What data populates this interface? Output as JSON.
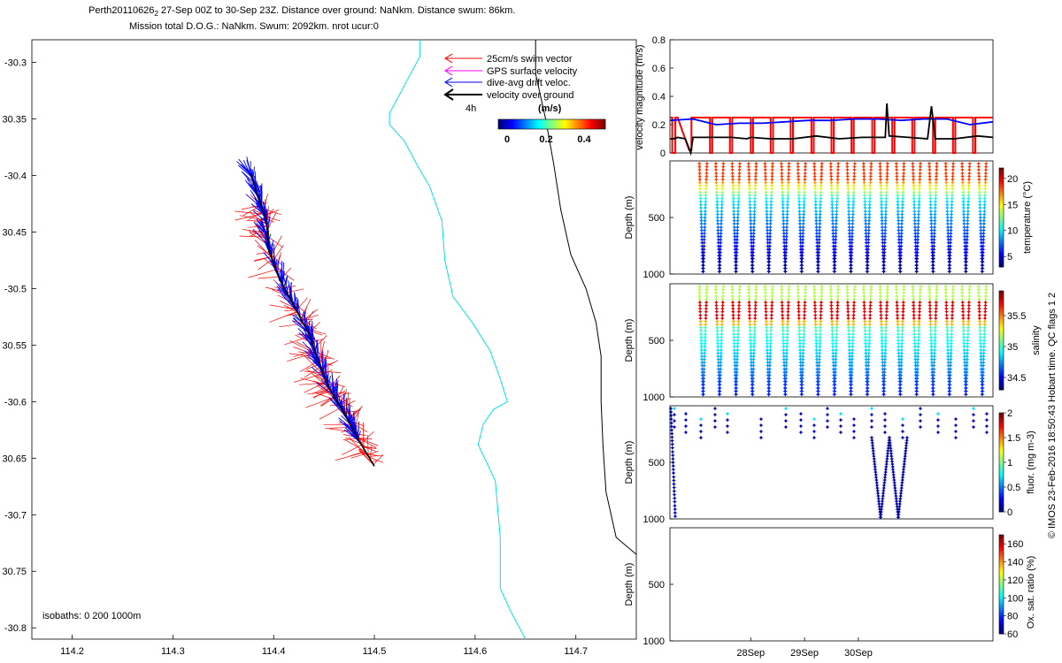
{
  "header": {
    "line1": "Perth20110626",
    "line1_sub": "2",
    "line1_rest": " 27-Sep 00Z to 30-Sep 23Z. Distance over ground: NaNkm. Distance swum: 86km.",
    "line2": "Mission total D.O.G.: NaNkm. Swum: 2092km. nrot ucur:0"
  },
  "map_legend": {
    "items": [
      {
        "label": "25cm/s swim vector",
        "color": "#ff0000"
      },
      {
        "label": "GPS surface velocity",
        "color": "#ff00ff"
      },
      {
        "label": "dive-avg drift veloc.",
        "color": "#0000ff"
      },
      {
        "label": "velocity over ground",
        "color": "#000000"
      }
    ],
    "scale_label": "4h",
    "colorbar_title": "(m/s)",
    "colorbar_ticks": [
      "0",
      "0.2",
      "0.4"
    ]
  },
  "isobaths_label": "isobaths: 0   200  1000m",
  "copyright": "© IMOS 23-Feb-2016 18:50:43 Hobart time. QC flags 1  2",
  "colors": {
    "swim": "#ff0000",
    "drift": "#0000ff",
    "ground": "#000000",
    "isobath_200": "#00e5ee",
    "isobath_1000": "#000000"
  },
  "chart_data": [
    {
      "type": "line",
      "name": "map",
      "xlim": [
        114.16,
        114.76
      ],
      "ylim": [
        -30.81,
        -30.28
      ],
      "xticks": [
        "114.2",
        "114.3",
        "114.4",
        "114.5",
        "114.6",
        "114.7"
      ],
      "yticks": [
        "-30.3",
        "-30.35",
        "-30.4",
        "-30.45",
        "-30.5",
        "-30.55",
        "-30.6",
        "-30.65",
        "-30.7",
        "-30.75",
        "-30.8"
      ],
      "ytick_labels": [
        "-30.3",
        "30.35",
        "-30.4",
        "30.45",
        "-30.5",
        "30.55",
        "-30.6",
        "30.65",
        "-30.7",
        "30.75",
        "-30.8"
      ],
      "isobath_200": [
        [
          114.545,
          -30.28
        ],
        [
          114.545,
          -30.295
        ],
        [
          114.53,
          -30.32
        ],
        [
          114.515,
          -30.345
        ],
        [
          114.515,
          -30.355
        ],
        [
          114.53,
          -30.37
        ],
        [
          114.542,
          -30.39
        ],
        [
          114.555,
          -30.41
        ],
        [
          114.567,
          -30.44
        ],
        [
          114.57,
          -30.475
        ],
        [
          114.578,
          -30.507
        ],
        [
          114.597,
          -30.53
        ],
        [
          114.615,
          -30.555
        ],
        [
          114.625,
          -30.58
        ],
        [
          114.632,
          -30.6
        ],
        [
          114.618,
          -30.607
        ],
        [
          114.608,
          -30.62
        ],
        [
          114.603,
          -30.638
        ],
        [
          114.62,
          -30.67
        ],
        [
          114.625,
          -30.72
        ],
        [
          114.625,
          -30.765
        ],
        [
          114.635,
          -30.785
        ],
        [
          114.65,
          -30.81
        ]
      ],
      "isobath_1000": [
        [
          114.66,
          -30.28
        ],
        [
          114.66,
          -30.31
        ],
        [
          114.67,
          -30.35
        ],
        [
          114.678,
          -30.39
        ],
        [
          114.685,
          -30.43
        ],
        [
          114.695,
          -30.47
        ],
        [
          114.71,
          -30.5
        ],
        [
          114.72,
          -30.53
        ],
        [
          114.725,
          -30.56
        ],
        [
          114.725,
          -30.6
        ],
        [
          114.727,
          -30.64
        ],
        [
          114.73,
          -30.68
        ],
        [
          114.74,
          -30.72
        ],
        [
          114.76,
          -30.735
        ]
      ],
      "track": [
        [
          114.377,
          -30.398
        ],
        [
          114.385,
          -30.42
        ],
        [
          114.393,
          -30.44
        ],
        [
          114.395,
          -30.465
        ],
        [
          114.405,
          -30.49
        ],
        [
          114.42,
          -30.515
        ],
        [
          114.435,
          -30.54
        ],
        [
          114.445,
          -30.565
        ],
        [
          114.455,
          -30.588
        ],
        [
          114.47,
          -30.61
        ],
        [
          114.485,
          -30.635
        ],
        [
          114.5,
          -30.657
        ]
      ],
      "swim_ends": [
        [
          114.4,
          -30.432
        ],
        [
          114.418,
          -30.447
        ],
        [
          114.405,
          -30.478
        ],
        [
          114.422,
          -30.493
        ],
        [
          114.41,
          -30.51
        ],
        [
          114.432,
          -30.522
        ],
        [
          114.415,
          -30.535
        ],
        [
          114.44,
          -30.548
        ],
        [
          114.425,
          -30.56
        ],
        [
          114.452,
          -30.573
        ],
        [
          114.432,
          -30.585
        ],
        [
          114.46,
          -30.598
        ],
        [
          114.445,
          -30.612
        ],
        [
          114.472,
          -30.622
        ],
        [
          114.458,
          -30.635
        ],
        [
          114.485,
          -30.645
        ],
        [
          114.47,
          -30.66
        ],
        [
          114.498,
          -30.668
        ],
        [
          114.48,
          -30.676
        ],
        [
          114.505,
          -30.665
        ]
      ],
      "drift_ends": [
        [
          114.375,
          -30.395
        ],
        [
          114.383,
          -30.405
        ],
        [
          114.392,
          -30.415
        ],
        [
          114.402,
          -30.48
        ],
        [
          114.418,
          -30.5
        ],
        [
          114.43,
          -30.52
        ],
        [
          114.44,
          -30.53
        ],
        [
          114.455,
          -30.55
        ],
        [
          114.465,
          -30.57
        ],
        [
          114.48,
          -30.59
        ],
        [
          114.49,
          -30.605
        ],
        [
          114.498,
          -30.62
        ]
      ]
    },
    {
      "type": "line",
      "name": "velocity",
      "ylabel": "velocity magnitude (m/s)",
      "ylim": [
        0,
        0.8
      ],
      "yticks": [
        "0",
        "0.2",
        "0.4",
        "0.6",
        "0.8"
      ],
      "xlim": [
        0,
        4.2
      ],
      "series": [
        {
          "color": "#ff0000",
          "description": "swim",
          "x": [
            0.0,
            0.03,
            0.03,
            0.07,
            0.07,
            0.1,
            0.25,
            0.28,
            0.28,
            0.52,
            0.52,
            0.55,
            0.55,
            0.78,
            0.78,
            0.81,
            0.81,
            1.05,
            1.05,
            1.08,
            1.08,
            1.31,
            1.31,
            1.34,
            1.34,
            1.57,
            1.57,
            1.6,
            1.6,
            1.84,
            1.84,
            1.87,
            1.87,
            2.1,
            2.1,
            2.13,
            2.13,
            2.36,
            2.36,
            2.39,
            2.39,
            2.63,
            2.63,
            2.66,
            2.66,
            2.89,
            2.89,
            2.92,
            2.92,
            3.15,
            3.15,
            3.18,
            3.18,
            3.42,
            3.42,
            3.45,
            3.45,
            3.68,
            3.68,
            3.71,
            3.71,
            3.94,
            3.94,
            3.97,
            3.97,
            4.2
          ],
          "y": [
            0.25,
            0.25,
            0.0,
            0.0,
            0.25,
            0.25,
            0.02,
            0.02,
            0.25,
            0.25,
            0.0,
            0.0,
            0.25,
            0.25,
            0.0,
            0.0,
            0.25,
            0.25,
            0.0,
            0.0,
            0.25,
            0.25,
            0.0,
            0.0,
            0.25,
            0.25,
            0.0,
            0.0,
            0.25,
            0.25,
            0.0,
            0.0,
            0.25,
            0.25,
            0.0,
            0.0,
            0.25,
            0.25,
            0.0,
            0.0,
            0.25,
            0.25,
            0.0,
            0.0,
            0.25,
            0.25,
            0.0,
            0.0,
            0.25,
            0.25,
            0.0,
            0.0,
            0.25,
            0.25,
            0.0,
            0.0,
            0.25,
            0.25,
            0.0,
            0.0,
            0.25,
            0.25,
            0.0,
            0.0,
            0.25,
            0.25
          ]
        },
        {
          "color": "#0000ff",
          "description": "drift",
          "x": [
            0.0,
            0.3,
            0.6,
            0.9,
            1.2,
            1.5,
            1.8,
            2.1,
            2.4,
            2.7,
            3.0,
            3.3,
            3.6,
            3.9,
            4.2
          ],
          "y": [
            0.23,
            0.24,
            0.2,
            0.21,
            0.21,
            0.22,
            0.23,
            0.23,
            0.24,
            0.24,
            0.23,
            0.24,
            0.24,
            0.2,
            0.22
          ]
        },
        {
          "color": "#000000",
          "description": "over ground",
          "x": [
            0.0,
            0.05,
            0.1,
            0.2,
            0.27,
            0.3,
            0.5,
            0.8,
            1.0,
            1.05,
            1.3,
            1.6,
            1.9,
            2.2,
            2.5,
            2.8,
            2.82,
            2.85,
            3.1,
            3.35,
            3.4,
            3.45,
            3.7,
            4.0,
            4.2
          ],
          "y": [
            0.1,
            0.1,
            0.11,
            0.1,
            0.0,
            0.11,
            0.11,
            0.11,
            0.1,
            0.11,
            0.1,
            0.1,
            0.12,
            0.1,
            0.11,
            0.11,
            0.35,
            0.12,
            0.11,
            0.1,
            0.33,
            0.1,
            0.1,
            0.12,
            0.11
          ]
        }
      ]
    },
    {
      "type": "scatter",
      "name": "temperature",
      "ylabel": "Depth (m)",
      "colorbar_label": "temperature (°C)",
      "colorbar_ticks": [
        "5",
        "10",
        "15",
        "20"
      ],
      "yticks": [
        "500",
        "1000"
      ],
      "ylim": [
        0,
        1000
      ],
      "clim": [
        3,
        22
      ],
      "n_dives": 18
    },
    {
      "type": "scatter",
      "name": "salinity",
      "ylabel": "Depth (m)",
      "colorbar_label": "salinity",
      "colorbar_ticks": [
        "34.5",
        "35",
        "35.5"
      ],
      "yticks": [
        "500",
        "1000"
      ],
      "ylim": [
        0,
        1000
      ],
      "clim": [
        34.3,
        35.9
      ],
      "n_dives": 18
    },
    {
      "type": "scatter",
      "name": "fluorescence",
      "ylabel": "Depth (m)",
      "colorbar_label": "fluor. (mg m-3)",
      "colorbar_ticks": [
        "0",
        "0.5",
        "1",
        "1.5",
        "2"
      ],
      "yticks": [
        "500",
        "1000"
      ],
      "ylim": [
        0,
        1000
      ],
      "clim": [
        0,
        2
      ]
    },
    {
      "type": "scatter",
      "name": "oxygen",
      "ylabel": "Depth (m)",
      "colorbar_label": "Ox. sat. ratio (%)",
      "colorbar_ticks": [
        "60",
        "80",
        "100",
        "120",
        "140",
        "160"
      ],
      "yticks": [
        "500",
        "1000"
      ],
      "ylim": [
        0,
        1000
      ],
      "clim": [
        60,
        170
      ],
      "xticks": [
        "28Sep",
        "29Sep",
        "30Sep"
      ],
      "xtick_pos": [
        1.05,
        1.75,
        2.45
      ]
    }
  ]
}
